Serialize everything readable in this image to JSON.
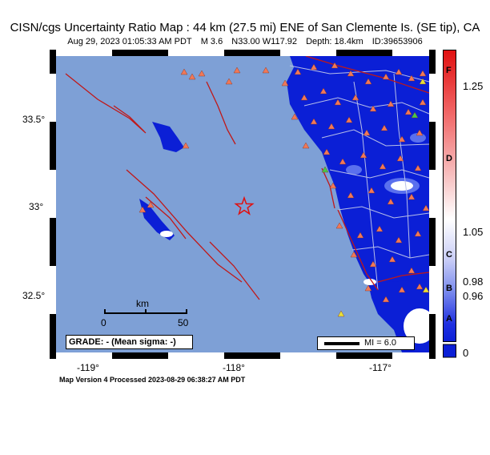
{
  "title": "CISN/cgs Uncertainty Ratio Map : 44  km (27.5 mi) ENE of San Clemente Is. (SE tip), CA",
  "subtitle": {
    "datetime": "Aug 29, 2023 01:05:33 AM PDT",
    "magnitude": "M 3.6",
    "location": "N33.00 W117.92",
    "depth": "Depth: 18.4km",
    "id": "ID:39653906"
  },
  "axes": {
    "lat_ticks": [
      "33.5",
      "33",
      "32.5"
    ],
    "lon_ticks": [
      "-119",
      "-118",
      "-117"
    ],
    "degree_mark": "°"
  },
  "scale_bar": {
    "unit": "km",
    "start": "0",
    "end": "50"
  },
  "grade_box": {
    "text": "GRADE: - (Mean sigma: -)"
  },
  "mi_box": {
    "text": "MI = 6.0"
  },
  "colorbar": {
    "values": [
      "1.25",
      "1.05",
      "0.98",
      "0.96",
      "0"
    ],
    "grades": [
      "F",
      "D",
      "C",
      "B",
      "A"
    ]
  },
  "footer": "Map Version 4 Processed 2023-08-29 06:38:27 AM PDT",
  "epicenter": {
    "lat": 33.0,
    "lon": -117.92
  },
  "colors": {
    "ocean": "#7ea0d6",
    "land_low": "#0b1fd6",
    "land_mid": "#3a52e8",
    "fault": "#c01818",
    "road": "#b8bfe8",
    "station": "#f07858",
    "station_alt": "#e8e038",
    "station_green": "#48c848",
    "epicenter": "#e01010"
  }
}
